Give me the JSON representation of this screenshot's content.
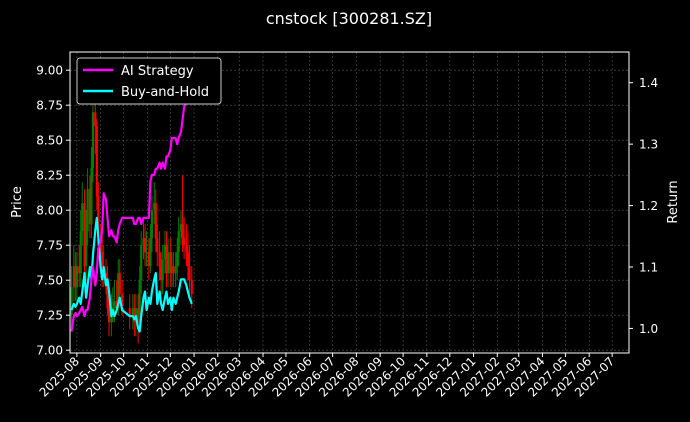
{
  "chart_data": {
    "type": "line",
    "title": "cnstock [300281.SZ]",
    "ylabel_left": "Price",
    "ylabel_right": "Return",
    "ylim_left": [
      6.98,
      9.13
    ],
    "ylim_right": [
      0.96,
      1.45
    ],
    "x_ticks": [
      "2025-08",
      "2025-09",
      "2025-10",
      "2025-11",
      "2025-12",
      "2026-01",
      "2026-02",
      "2026-03",
      "2026-04",
      "2026-05",
      "2026-06",
      "2026-07",
      "2026-08",
      "2026-09",
      "2026-10",
      "2026-11",
      "2026-12",
      "2027-01",
      "2027-02",
      "2027-03",
      "2027-04",
      "2027-05",
      "2027-06",
      "2027-07"
    ],
    "y_ticks_left": [
      "7.00",
      "7.25",
      "7.50",
      "7.75",
      "8.00",
      "8.25",
      "8.50",
      "8.75",
      "9.00"
    ],
    "y_ticks_right": [
      "1.0",
      "1.1",
      "1.2",
      "1.3",
      "1.4"
    ],
    "grid": true,
    "legend_position": "top-left",
    "colors": {
      "background": "#000000",
      "ai_strategy": "#ff00ff",
      "buy_and_hold": "#00ffff",
      "candle_up": "#008000",
      "candle_down": "#ff0000",
      "grid": "#555555"
    },
    "series": [
      {
        "name": "AI Strategy",
        "axis": "right",
        "x": [
          "2025-07-25",
          "2025-07-28",
          "2025-07-30",
          "2025-08-01",
          "2025-08-04",
          "2025-08-06",
          "2025-08-08",
          "2025-08-11",
          "2025-08-13",
          "2025-08-15",
          "2025-08-18",
          "2025-08-20",
          "2025-08-22",
          "2025-08-25",
          "2025-08-27",
          "2025-08-29",
          "2025-09-01",
          "2025-09-03",
          "2025-09-05",
          "2025-09-08",
          "2025-09-10",
          "2025-09-12",
          "2025-09-15",
          "2025-09-17",
          "2025-09-19",
          "2025-09-22",
          "2025-09-24",
          "2025-09-26",
          "2025-09-29",
          "2025-10-09",
          "2025-10-13",
          "2025-10-15",
          "2025-10-17",
          "2025-10-20",
          "2025-10-22",
          "2025-10-24",
          "2025-10-27",
          "2025-10-29",
          "2025-10-31",
          "2025-11-03",
          "2025-11-05",
          "2025-11-07",
          "2025-11-10",
          "2025-11-12",
          "2025-11-14",
          "2025-11-17",
          "2025-11-19",
          "2025-11-21",
          "2025-11-24",
          "2025-11-26",
          "2025-11-28",
          "2025-12-01",
          "2025-12-03",
          "2025-12-05",
          "2025-12-08",
          "2025-12-10",
          "2025-12-12",
          "2025-12-15",
          "2025-12-17",
          "2025-12-19",
          "2025-12-22",
          "2025-12-24",
          "2025-12-26",
          "2025-12-29"
        ],
        "values": [
          0.995,
          1.02,
          1.025,
          1.02,
          1.025,
          1.03,
          1.035,
          1.02,
          1.03,
          1.03,
          1.05,
          1.08,
          1.1,
          1.07,
          1.09,
          1.13,
          1.14,
          1.16,
          1.22,
          1.21,
          1.18,
          1.15,
          1.16,
          1.15,
          1.15,
          1.14,
          1.16,
          1.17,
          1.18,
          1.18,
          1.18,
          1.17,
          1.17,
          1.18,
          1.18,
          1.17,
          1.18,
          1.18,
          1.18,
          1.18,
          1.24,
          1.25,
          1.25,
          1.26,
          1.26,
          1.27,
          1.26,
          1.27,
          1.26,
          1.28,
          1.28,
          1.29,
          1.31,
          1.31,
          1.31,
          1.3,
          1.31,
          1.32,
          1.34,
          1.36,
          1.37,
          1.38,
          1.4,
          1.42
        ]
      },
      {
        "name": "Buy-and-Hold",
        "axis": "right",
        "x": [
          "2025-07-25",
          "2025-07-28",
          "2025-07-30",
          "2025-08-01",
          "2025-08-04",
          "2025-08-06",
          "2025-08-08",
          "2025-08-11",
          "2025-08-13",
          "2025-08-15",
          "2025-08-18",
          "2025-08-20",
          "2025-08-22",
          "2025-08-25",
          "2025-08-27",
          "2025-08-29",
          "2025-09-01",
          "2025-09-03",
          "2025-09-05",
          "2025-09-08",
          "2025-09-10",
          "2025-09-12",
          "2025-09-15",
          "2025-09-17",
          "2025-09-19",
          "2025-09-22",
          "2025-09-24",
          "2025-09-26",
          "2025-09-29",
          "2025-10-09",
          "2025-10-13",
          "2025-10-15",
          "2025-10-17",
          "2025-10-20",
          "2025-10-22",
          "2025-10-24",
          "2025-10-27",
          "2025-10-29",
          "2025-10-31",
          "2025-11-03",
          "2025-11-05",
          "2025-11-07",
          "2025-11-10",
          "2025-11-12",
          "2025-11-14",
          "2025-11-17",
          "2025-11-19",
          "2025-11-21",
          "2025-11-24",
          "2025-11-26",
          "2025-11-28",
          "2025-12-01",
          "2025-12-03",
          "2025-12-05",
          "2025-12-08",
          "2025-12-10",
          "2025-12-12",
          "2025-12-15",
          "2025-12-17",
          "2025-12-19",
          "2025-12-22",
          "2025-12-24",
          "2025-12-26",
          "2025-12-29"
        ],
        "values": [
          1.03,
          1.04,
          1.035,
          1.04,
          1.05,
          1.04,
          1.06,
          1.09,
          1.05,
          1.07,
          1.1,
          1.08,
          1.12,
          1.16,
          1.18,
          1.15,
          1.1,
          1.08,
          1.1,
          1.07,
          1.08,
          1.06,
          1.02,
          1.03,
          1.02,
          1.03,
          1.04,
          1.05,
          1.03,
          1.02,
          1.02,
          1.015,
          1.02,
          1.0,
          0.995,
          1.02,
          1.05,
          1.06,
          1.03,
          1.05,
          1.04,
          1.06,
          1.08,
          1.09,
          1.04,
          1.06,
          1.04,
          1.03,
          1.05,
          1.06,
          1.04,
          1.05,
          1.03,
          1.05,
          1.04,
          1.05,
          1.06,
          1.08,
          1.08,
          1.08,
          1.07,
          1.06,
          1.05,
          1.04
        ]
      }
    ],
    "candles": {
      "x": [
        "2025-07-25",
        "2025-07-28",
        "2025-07-30",
        "2025-08-01",
        "2025-08-04",
        "2025-08-06",
        "2025-08-08",
        "2025-08-11",
        "2025-08-13",
        "2025-08-15",
        "2025-08-18",
        "2025-08-20",
        "2025-08-22",
        "2025-08-25",
        "2025-08-27",
        "2025-08-29",
        "2025-09-01",
        "2025-09-03",
        "2025-09-05",
        "2025-09-08",
        "2025-09-10",
        "2025-09-12",
        "2025-09-15",
        "2025-09-17",
        "2025-09-19",
        "2025-09-22",
        "2025-09-24",
        "2025-09-26",
        "2025-09-29",
        "2025-10-09",
        "2025-10-13",
        "2025-10-15",
        "2025-10-17",
        "2025-10-20",
        "2025-10-22",
        "2025-10-24",
        "2025-10-27",
        "2025-10-29",
        "2025-10-31",
        "2025-11-03",
        "2025-11-05",
        "2025-11-07",
        "2025-11-10",
        "2025-11-12",
        "2025-11-14",
        "2025-11-17",
        "2025-11-19",
        "2025-11-21",
        "2025-11-24",
        "2025-11-26",
        "2025-11-28",
        "2025-12-01",
        "2025-12-03",
        "2025-12-05",
        "2025-12-08",
        "2025-12-10",
        "2025-12-12",
        "2025-12-15",
        "2025-12-17",
        "2025-12-19",
        "2025-12-22",
        "2025-12-24",
        "2025-12-26",
        "2025-12-29"
      ],
      "open": [
        7.25,
        7.45,
        7.6,
        7.45,
        7.6,
        7.55,
        7.85,
        8.05,
        7.6,
        7.85,
        8.15,
        7.9,
        8.3,
        8.7,
        8.6,
        8.1,
        7.75,
        7.7,
        7.55,
        7.55,
        7.5,
        7.3,
        7.2,
        7.3,
        7.3,
        7.35,
        7.3,
        7.55,
        7.4,
        7.3,
        7.25,
        7.3,
        7.2,
        7.3,
        7.2,
        7.5,
        7.75,
        7.8,
        7.7,
        7.7,
        7.6,
        7.8,
        8.0,
        8.05,
        7.8,
        7.7,
        7.6,
        7.5,
        7.65,
        7.75,
        7.55,
        7.7,
        7.55,
        7.6,
        7.55,
        7.6,
        7.7,
        7.85,
        7.9,
        7.8,
        7.75,
        7.7,
        7.6,
        7.5
      ],
      "close": [
        7.45,
        7.6,
        7.45,
        7.6,
        7.55,
        7.85,
        8.05,
        7.6,
        7.85,
        8.15,
        7.9,
        8.3,
        8.7,
        8.6,
        8.1,
        7.75,
        7.7,
        7.55,
        7.55,
        7.5,
        7.3,
        7.2,
        7.3,
        7.3,
        7.35,
        7.3,
        7.55,
        7.4,
        7.3,
        7.25,
        7.3,
        7.2,
        7.3,
        7.2,
        7.5,
        7.75,
        7.8,
        7.7,
        7.7,
        7.6,
        7.8,
        8.0,
        8.05,
        7.8,
        7.7,
        7.6,
        7.5,
        7.65,
        7.75,
        7.55,
        7.7,
        7.55,
        7.6,
        7.55,
        7.6,
        7.7,
        7.85,
        7.9,
        7.8,
        7.75,
        7.7,
        7.6,
        7.5,
        7.4
      ],
      "high": [
        7.6,
        7.75,
        7.7,
        7.7,
        7.75,
        8.0,
        8.2,
        8.15,
        8.0,
        8.3,
        8.25,
        8.45,
        8.9,
        8.85,
        8.65,
        8.2,
        7.9,
        7.85,
        7.75,
        7.65,
        7.6,
        7.4,
        7.4,
        7.45,
        7.5,
        7.5,
        7.65,
        7.65,
        7.5,
        7.4,
        7.4,
        7.4,
        7.4,
        7.4,
        7.6,
        7.85,
        7.95,
        7.9,
        7.85,
        7.8,
        7.9,
        8.1,
        8.2,
        8.15,
        7.9,
        7.85,
        7.7,
        7.75,
        7.85,
        7.85,
        7.8,
        7.8,
        7.7,
        7.7,
        7.7,
        7.8,
        7.95,
        8.0,
        8.25,
        7.95,
        7.9,
        7.85,
        7.75,
        7.6
      ],
      "low": [
        7.15,
        7.35,
        7.35,
        7.35,
        7.45,
        7.45,
        7.75,
        7.5,
        7.5,
        7.75,
        7.8,
        7.8,
        8.2,
        8.4,
        8.0,
        7.65,
        7.6,
        7.45,
        7.45,
        7.4,
        7.25,
        7.1,
        7.1,
        7.2,
        7.2,
        7.25,
        7.25,
        7.35,
        7.25,
        7.15,
        7.15,
        7.1,
        7.1,
        7.05,
        7.15,
        7.4,
        7.65,
        7.6,
        7.6,
        7.5,
        7.55,
        7.7,
        7.9,
        7.7,
        7.6,
        7.5,
        7.4,
        7.4,
        7.55,
        7.45,
        7.45,
        7.45,
        7.45,
        7.45,
        7.45,
        7.5,
        7.6,
        7.75,
        7.7,
        7.65,
        7.6,
        7.5,
        7.4,
        7.3
      ]
    }
  }
}
